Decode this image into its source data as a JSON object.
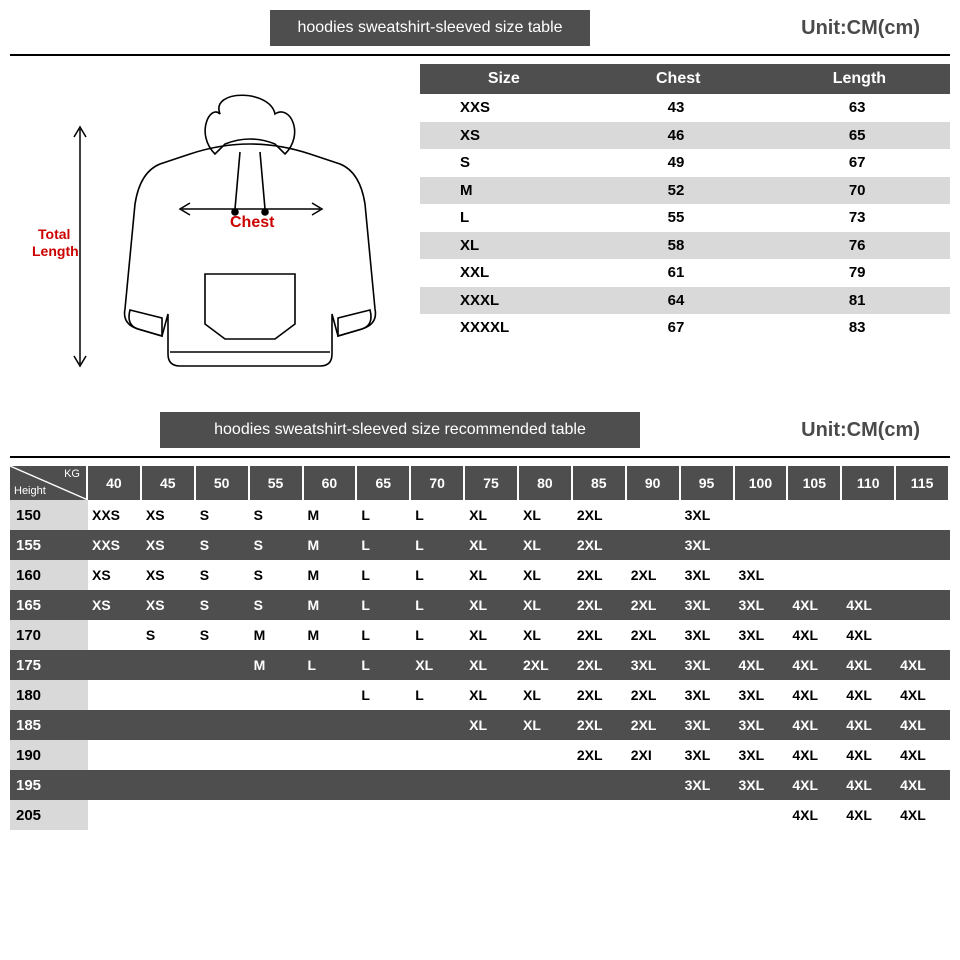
{
  "header1": {
    "title": "hoodies sweatshirt-sleeved size  table",
    "unit": "Unit:CM(cm)"
  },
  "header2": {
    "title": "hoodies sweatshirt-sleeved size recommended table",
    "unit": "Unit:CM(cm)"
  },
  "diagram": {
    "chest_label": "Chest",
    "length_label": "Total\nLength"
  },
  "size_table": {
    "columns": [
      "Size",
      "Chest",
      "Length"
    ],
    "rows": [
      [
        "XXS",
        "43",
        "63"
      ],
      [
        "XS",
        "46",
        "65"
      ],
      [
        "S",
        "49",
        "67"
      ],
      [
        "M",
        "52",
        "70"
      ],
      [
        "L",
        "55",
        "73"
      ],
      [
        "XL",
        "58",
        "76"
      ],
      [
        "XXL",
        "61",
        "79"
      ],
      [
        "XXXL",
        "64",
        "81"
      ],
      [
        "XXXXL",
        "67",
        "83"
      ]
    ]
  },
  "rec_table": {
    "axis_kg": "KG",
    "axis_height": "Height",
    "kg_headers": [
      "40",
      "45",
      "50",
      "55",
      "60",
      "65",
      "70",
      "75",
      "80",
      "85",
      "90",
      "95",
      "100",
      "105",
      "110",
      "115"
    ],
    "rows": [
      {
        "h": "150",
        "dark": false,
        "v": [
          "XXS",
          "XS",
          "S",
          "S",
          "M",
          "L",
          "L",
          "XL",
          "XL",
          "2XL",
          "",
          "3XL",
          "",
          "",
          "",
          ""
        ]
      },
      {
        "h": "155",
        "dark": true,
        "v": [
          "XXS",
          "XS",
          "S",
          "S",
          "M",
          "L",
          "L",
          "XL",
          "XL",
          "2XL",
          "",
          "3XL",
          "",
          "",
          "",
          ""
        ]
      },
      {
        "h": "160",
        "dark": false,
        "v": [
          "XS",
          "XS",
          "S",
          "S",
          "M",
          "L",
          "L",
          "XL",
          "XL",
          "2XL",
          "2XL",
          "3XL",
          "3XL",
          "",
          "",
          ""
        ]
      },
      {
        "h": "165",
        "dark": true,
        "v": [
          "XS",
          "XS",
          "S",
          "S",
          "M",
          "L",
          "L",
          "XL",
          "XL",
          "2XL",
          "2XL",
          "3XL",
          "3XL",
          "4XL",
          "4XL",
          ""
        ]
      },
      {
        "h": "170",
        "dark": false,
        "v": [
          "",
          "S",
          "S",
          "M",
          "M",
          "L",
          "L",
          "XL",
          "XL",
          "2XL",
          "2XL",
          "3XL",
          "3XL",
          "4XL",
          "4XL",
          ""
        ]
      },
      {
        "h": "175",
        "dark": true,
        "v": [
          "",
          "",
          "",
          "M",
          "L",
          "L",
          "XL",
          "XL",
          "2XL",
          "2XL",
          "3XL",
          "3XL",
          "4XL",
          "4XL",
          "4XL",
          "4XL"
        ]
      },
      {
        "h": "180",
        "dark": false,
        "v": [
          "",
          "",
          "",
          "",
          "",
          "L",
          "L",
          "XL",
          "XL",
          "2XL",
          "2XL",
          "3XL",
          "3XL",
          "4XL",
          "4XL",
          "4XL"
        ]
      },
      {
        "h": "185",
        "dark": true,
        "v": [
          "",
          "",
          "",
          "",
          "",
          "",
          "",
          "XL",
          "XL",
          "2XL",
          "2XL",
          "3XL",
          "3XL",
          "4XL",
          "4XL",
          "4XL"
        ]
      },
      {
        "h": "190",
        "dark": false,
        "v": [
          "",
          "",
          "",
          "",
          "",
          "",
          "",
          "",
          "",
          "2XL",
          "2XI",
          "3XL",
          "3XL",
          "4XL",
          "4XL",
          "4XL"
        ]
      },
      {
        "h": "195",
        "dark": true,
        "v": [
          "",
          "",
          "",
          "",
          "",
          "",
          "",
          "",
          "",
          "",
          "",
          "3XL",
          "3XL",
          "4XL",
          "4XL",
          "4XL"
        ]
      },
      {
        "h": "205",
        "dark": false,
        "v": [
          "",
          "",
          "",
          "",
          "",
          "",
          "",
          "",
          "",
          "",
          "",
          "",
          "",
          "4XL",
          "4XL",
          "4XL"
        ]
      }
    ]
  },
  "colors": {
    "bar_bg": "#4e4e4e",
    "stripe_bg": "#d9d9d9",
    "accent_red": "#c00"
  }
}
